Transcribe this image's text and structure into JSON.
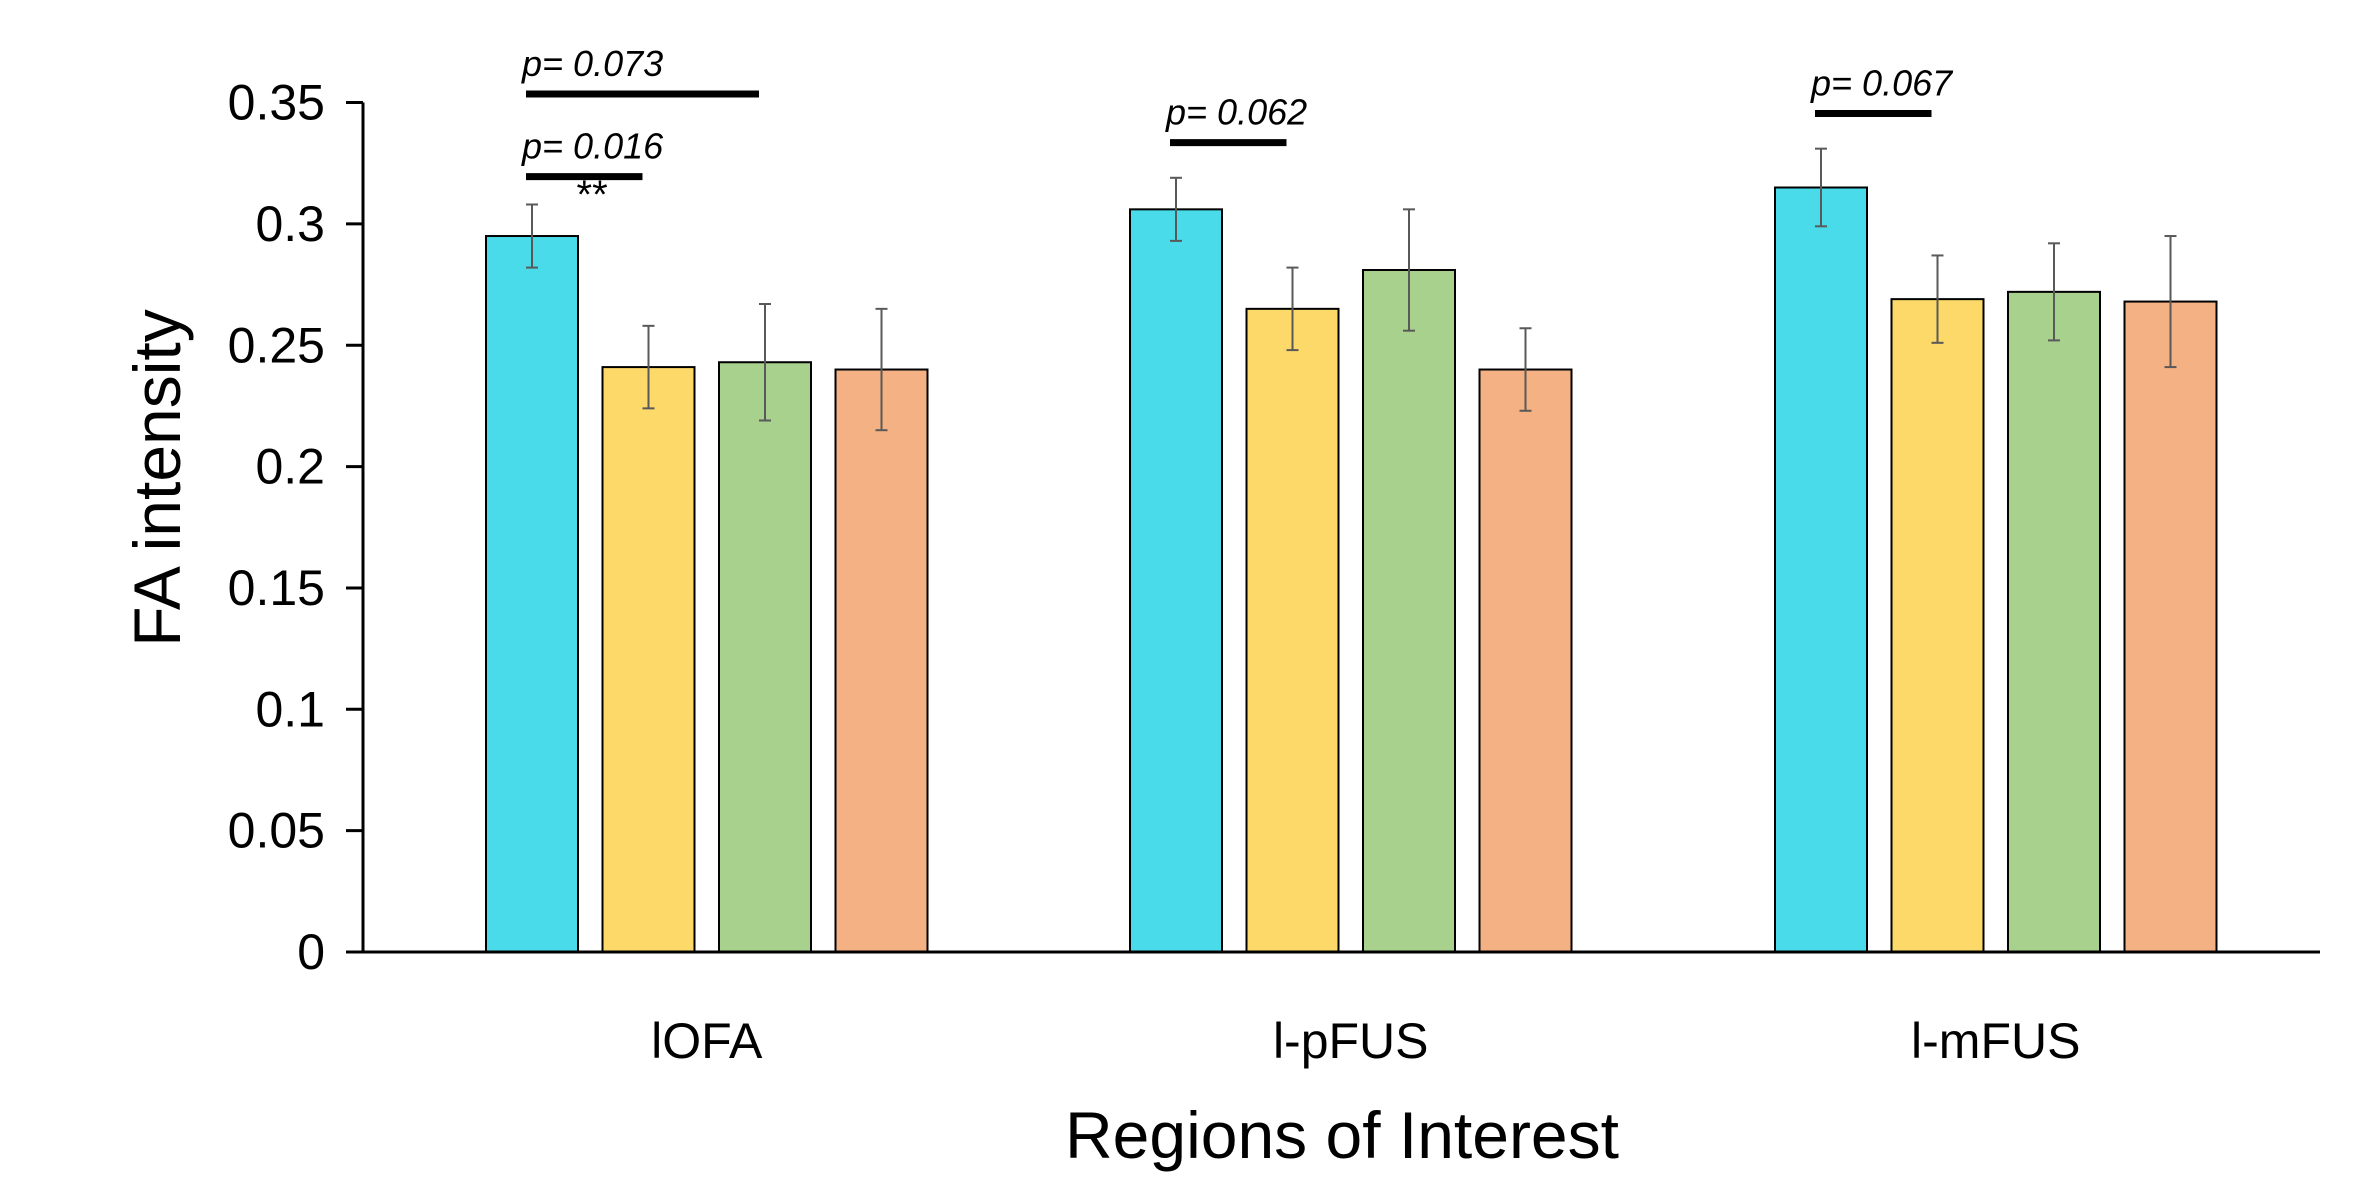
{
  "chart_data": {
    "type": "bar",
    "title": "",
    "xlabel": "Regions of Interest",
    "ylabel": "FA intensity",
    "ylim": [
      0,
      0.35
    ],
    "yticks": [
      "0",
      "0.05",
      "0.1",
      "0.15",
      "0.2",
      "0.25",
      "0.3",
      "0.35"
    ],
    "grid": false,
    "legend": "none",
    "categories": [
      "lOFA",
      "l-pFUS",
      "l-mFUS"
    ],
    "colors": [
      "#4ADBEA",
      "#FDD96A",
      "#A9D18E",
      "#F4B183"
    ],
    "series": [
      {
        "values": [
          0.295,
          0.306,
          0.315
        ],
        "errors": [
          0.013,
          0.013,
          0.016
        ]
      },
      {
        "values": [
          0.241,
          0.265,
          0.269
        ],
        "errors": [
          0.017,
          0.017,
          0.018
        ]
      },
      {
        "values": [
          0.243,
          0.281,
          0.272
        ],
        "errors": [
          0.024,
          0.025,
          0.02
        ]
      },
      {
        "values": [
          0.24,
          0.24,
          0.268
        ],
        "errors": [
          0.025,
          0.017,
          0.027
        ]
      }
    ],
    "annotations": [
      {
        "text": "p= 0.073",
        "category": 0,
        "from_series": 0,
        "to_series": 2,
        "level": 0.3535
      },
      {
        "text": "p= 0.016",
        "category": 0,
        "from_series": 0,
        "to_series": 1,
        "level": 0.3195
      },
      {
        "text": "**",
        "category": 0,
        "series": 1,
        "level": 0.305
      },
      {
        "text": "p= 0.062",
        "category": 1,
        "from_series": 0,
        "to_series": 1,
        "level": 0.3335
      },
      {
        "text": "p= 0.067",
        "category": 2,
        "from_series": 0,
        "to_series": 1,
        "level": 0.3455
      }
    ]
  }
}
